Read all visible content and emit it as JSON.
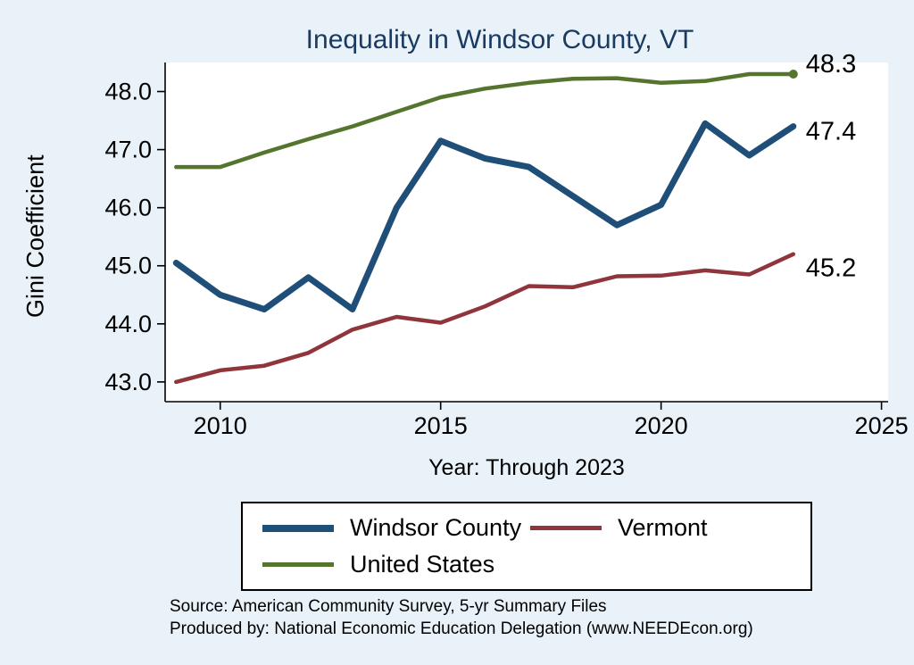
{
  "page": {
    "background_color": "#e8f2f8",
    "title_color": "#1a3a63"
  },
  "title": "Inequality in Windsor County, VT",
  "ylabel": "Gini Coefficient",
  "xlabel": "Year: Through 2023",
  "source_line1": "Source: American Community Survey, 5-yr Summary Files",
  "source_line2": "Produced by: National Economic Education Delegation (www.NEEDEcon.org)",
  "chart_data": {
    "type": "line",
    "title": "Inequality in Windsor County, VT",
    "xlabel": "Year: Through 2023",
    "ylabel": "Gini Coefficient",
    "grid": false,
    "legend_position": "bottom",
    "x": [
      2009,
      2010,
      2011,
      2012,
      2013,
      2014,
      2015,
      2016,
      2017,
      2018,
      2019,
      2020,
      2021,
      2022,
      2023
    ],
    "series": [
      {
        "name": "Windsor County",
        "color": "#1f4e79",
        "values": [
          45.05,
          44.5,
          44.25,
          44.8,
          44.25,
          46.0,
          47.15,
          46.85,
          46.7,
          46.2,
          45.7,
          46.05,
          47.45,
          46.9,
          47.4
        ],
        "end_label": "47.4",
        "end_marker": false
      },
      {
        "name": "Vermont",
        "color": "#90353b",
        "values": [
          43.0,
          43.2,
          43.28,
          43.5,
          43.9,
          44.12,
          44.02,
          44.3,
          44.65,
          44.63,
          44.82,
          44.83,
          44.92,
          44.85,
          45.2
        ],
        "end_label": "45.2",
        "end_marker": false
      },
      {
        "name": "United States",
        "color": "#55752f",
        "values": [
          46.7,
          46.7,
          46.95,
          47.18,
          47.4,
          47.65,
          47.9,
          48.05,
          48.15,
          48.22,
          48.23,
          48.15,
          48.18,
          48.3,
          48.3
        ],
        "end_label": "48.3",
        "end_marker": true
      }
    ],
    "y_ticks": [
      43.0,
      44.0,
      45.0,
      46.0,
      47.0,
      48.0
    ],
    "y_tick_labels": [
      "43.0",
      "44.0",
      "45.0",
      "46.0",
      "47.0",
      "48.0"
    ],
    "x_ticks": [
      2010,
      2015,
      2020,
      2025
    ],
    "x_tick_labels": [
      "2010",
      "2015",
      "2020",
      "2025"
    ],
    "ylim": [
      42.66,
      48.5
    ],
    "xlim": [
      2008.75,
      2025.15
    ]
  },
  "legend": {
    "items": [
      {
        "label": "Windsor County",
        "color": "#1f4e79",
        "thickness": 8
      },
      {
        "label": "Vermont",
        "color": "#90353b",
        "thickness": 5
      },
      {
        "label": "United States",
        "color": "#55752f",
        "thickness": 5
      }
    ]
  }
}
